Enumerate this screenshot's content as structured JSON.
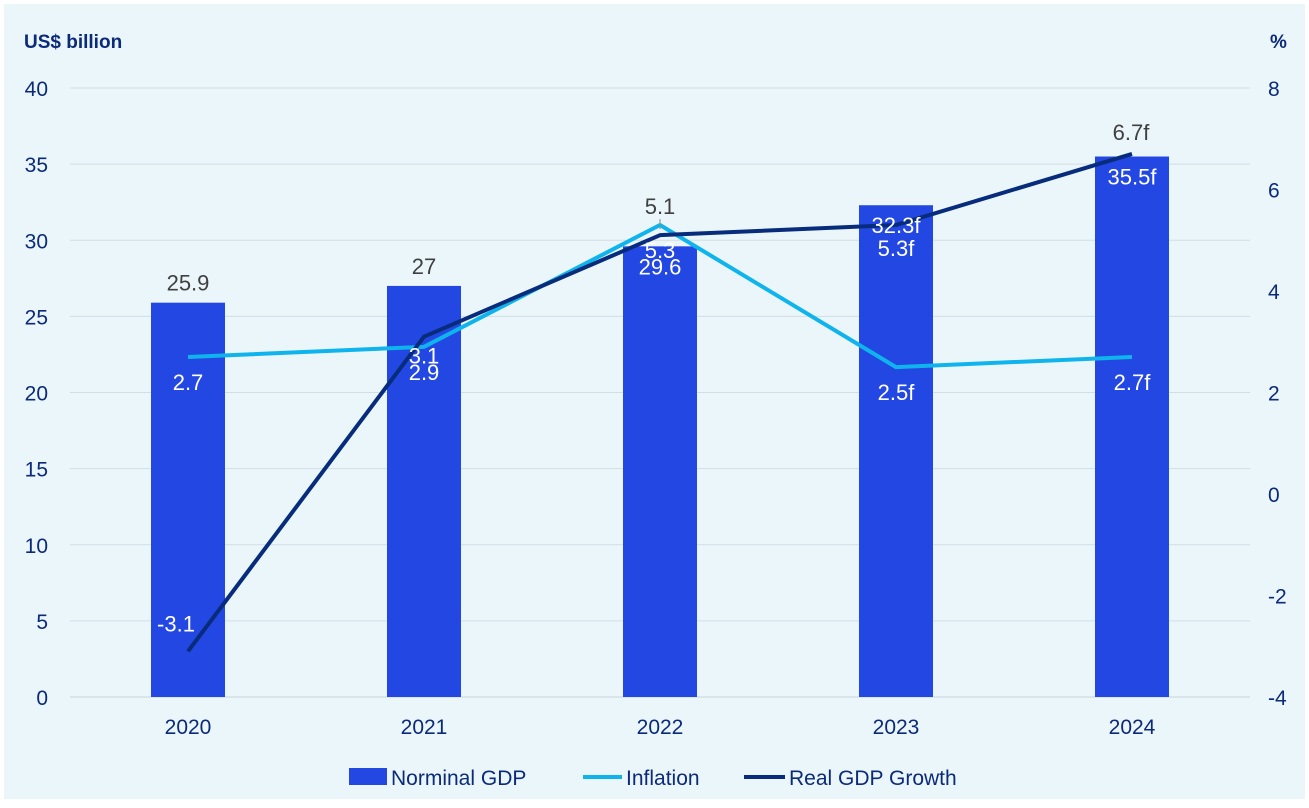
{
  "colors": {
    "background": "#ebf6fb",
    "bar": "#2347e2",
    "inflation": "#10b4ec",
    "real_growth": "#082c7c",
    "axis_text": "#0b2a7a",
    "grid": "#d3dde5",
    "label_dark": "#404040",
    "label_light": "#ffffff"
  },
  "chart_data": {
    "type": "bar",
    "categories": [
      "2020",
      "2021",
      "2022",
      "2023",
      "2024"
    ],
    "left_axis": {
      "unit_label": "US$ billion",
      "ylim": [
        0,
        40
      ],
      "ticks": [
        "0",
        "5",
        "10",
        "15",
        "20",
        "25",
        "30",
        "35",
        "40"
      ]
    },
    "right_axis": {
      "unit_label": "%",
      "ylim": [
        -4,
        8
      ],
      "ticks": [
        "-4",
        "-2",
        "0",
        "2",
        "4",
        "6",
        "8"
      ]
    },
    "grid": true,
    "legend_position": "bottom",
    "series": [
      {
        "name": "Norminal GDP",
        "type": "bar",
        "axis": "left",
        "values": [
          25.9,
          27,
          29.6,
          32.3,
          35.5
        ],
        "labels": [
          "25.9",
          "27",
          "29.6",
          "32.3f",
          "35.5f"
        ]
      },
      {
        "name": "Inflation",
        "type": "line",
        "axis": "right",
        "values": [
          2.7,
          2.9,
          5.3,
          2.5,
          2.7
        ],
        "labels": [
          "2.7",
          "2.9",
          "5.3",
          "2.5f",
          "2.7f"
        ]
      },
      {
        "name": "Real GDP Growth",
        "type": "line",
        "axis": "right",
        "values": [
          -3.1,
          3.1,
          5.1,
          5.3,
          6.7
        ],
        "labels": [
          "-3.1",
          "3.1",
          "5.1",
          "5.3f",
          "6.7f"
        ]
      }
    ]
  }
}
